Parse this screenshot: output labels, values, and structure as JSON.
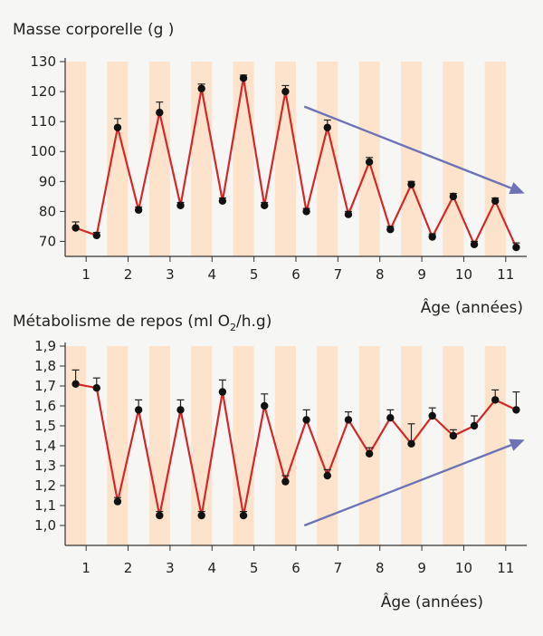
{
  "chart_data": [
    {
      "type": "line",
      "title": "Masse corporelle (g )",
      "xlabel": "Âge (années)",
      "ylabel": "Masse corporelle (g )",
      "ylim": [
        65,
        130
      ],
      "yticks": [
        70,
        80,
        90,
        100,
        110,
        120,
        130
      ],
      "ytick_labels": [
        "70",
        "80",
        "90",
        "100",
        "110",
        "120",
        "130"
      ],
      "xticks": [
        1,
        2,
        3,
        4,
        5,
        6,
        7,
        8,
        9,
        10,
        11
      ],
      "xtick_labels": [
        "1",
        "2",
        "3",
        "4",
        "5",
        "6",
        "7",
        "8",
        "9",
        "10",
        "11"
      ],
      "xlim": [
        0.5,
        11.5
      ],
      "series": [
        {
          "name": "Masse corporelle",
          "x": [
            0.75,
            1.25,
            1.75,
            2.25,
            2.75,
            3.25,
            3.75,
            4.25,
            4.75,
            5.25,
            5.75,
            6.25,
            6.75,
            7.25,
            7.75,
            8.25,
            8.75,
            9.25,
            9.75,
            10.25,
            10.75,
            11.25
          ],
          "values": [
            74.5,
            72,
            108,
            80.5,
            113,
            82,
            121,
            83.5,
            124.5,
            82,
            120,
            80,
            108,
            79,
            96.5,
            74,
            89,
            71.5,
            85,
            69,
            83.5,
            68
          ],
          "error": [
            2,
            1,
            3,
            1,
            3.5,
            1,
            1.5,
            1,
            1,
            1,
            2,
            1,
            2.5,
            1,
            1.5,
            1,
            1,
            1,
            1,
            1,
            1,
            1.5
          ]
        }
      ],
      "bands": [
        0.75,
        1.75,
        2.75,
        3.75,
        4.75,
        5.75,
        6.75,
        7.75,
        8.75,
        9.75,
        10.75
      ],
      "band_color": "#fde3cc",
      "line_color": "#d42828",
      "annotation": {
        "type": "arrow",
        "direction": "down",
        "from": [
          6.2,
          115
        ],
        "to": [
          11.45,
          86
        ],
        "color": "#6d73b6"
      }
    },
    {
      "type": "line",
      "title": "Métabolisme de repos (ml O",
      "title_subscript": "2",
      "title_suffix": "/h.g)",
      "xlabel": "Âge (années)",
      "ylabel": "Métabolisme de repos (ml O2/h.g)",
      "ylim": [
        0.9,
        1.9
      ],
      "yticks": [
        1.0,
        1.1,
        1.2,
        1.3,
        1.4,
        1.5,
        1.6,
        1.7,
        1.8,
        1.9
      ],
      "ytick_labels": [
        "1,0",
        "1,1",
        "1,2",
        "1,3",
        "1,4",
        "1,5",
        "1,6",
        "1,7",
        "1,8",
        "1,9"
      ],
      "xticks": [
        1,
        2,
        3,
        4,
        5,
        6,
        7,
        8,
        9,
        10,
        11
      ],
      "xtick_labels": [
        "1",
        "2",
        "3",
        "4",
        "5",
        "6",
        "7",
        "8",
        "9",
        "10",
        "11"
      ],
      "xlim": [
        0.5,
        11.5
      ],
      "series": [
        {
          "name": "Métabolisme de repos",
          "x": [
            0.75,
            1.25,
            1.75,
            2.25,
            2.75,
            3.25,
            3.75,
            4.25,
            4.75,
            5.25,
            5.75,
            6.25,
            6.75,
            7.25,
            7.75,
            8.25,
            8.75,
            9.25,
            9.75,
            10.25,
            10.75,
            11.25
          ],
          "values": [
            1.71,
            1.69,
            1.12,
            1.58,
            1.05,
            1.58,
            1.05,
            1.67,
            1.05,
            1.6,
            1.22,
            1.53,
            1.25,
            1.53,
            1.36,
            1.54,
            1.41,
            1.55,
            1.45,
            1.5,
            1.63,
            1.58
          ],
          "error": [
            0.07,
            0.05,
            0.02,
            0.05,
            0.02,
            0.05,
            0.02,
            0.06,
            0.02,
            0.06,
            0.03,
            0.05,
            0.03,
            0.04,
            0.03,
            0.04,
            0.1,
            0.04,
            0.03,
            0.05,
            0.05,
            0.09
          ]
        }
      ],
      "bands": [
        0.75,
        1.75,
        2.75,
        3.75,
        4.75,
        5.75,
        6.75,
        7.75,
        8.75,
        9.75,
        10.75
      ],
      "band_color": "#fde3cc",
      "line_color": "#d42828",
      "annotation": {
        "type": "arrow",
        "direction": "up",
        "from": [
          6.2,
          1.0
        ],
        "to": [
          11.45,
          1.43
        ],
        "color": "#6d73b6"
      }
    }
  ]
}
